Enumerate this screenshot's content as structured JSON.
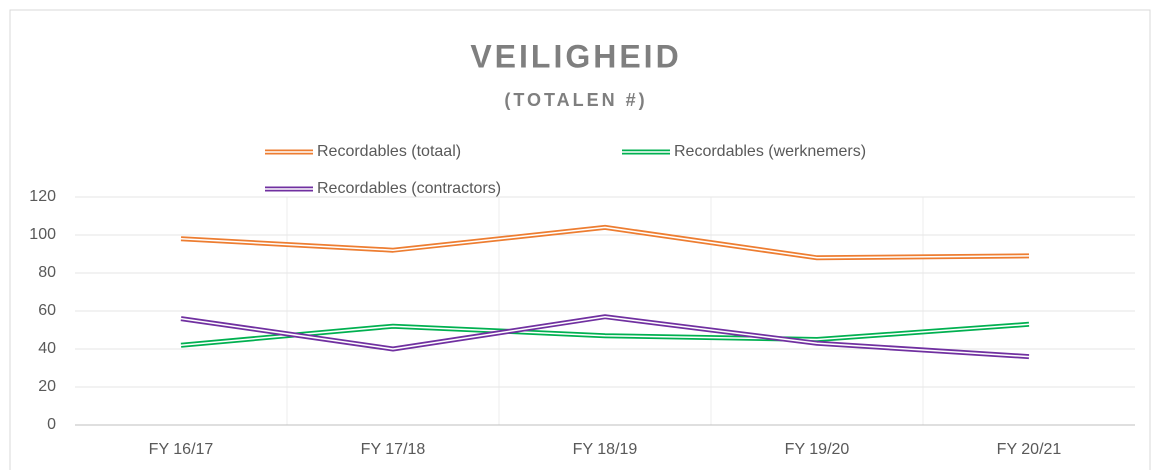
{
  "chart_data": {
    "type": "line",
    "title": "VEILIGHEID",
    "subtitle": "(TOTALEN #)",
    "categories": [
      "FY 16/17",
      "FY 17/18",
      "FY 18/19",
      "FY 19/20",
      "FY 20/21"
    ],
    "series": [
      {
        "name": "Recordables (totaal)",
        "color": "#ed7d31",
        "values": [
          98,
          92,
          104,
          88,
          89
        ]
      },
      {
        "name": "Recordables (werknemers)",
        "color": "#00b050",
        "values": [
          42,
          52,
          47,
          45,
          53
        ]
      },
      {
        "name": "Recordables (contractors)",
        "color": "#7030a0",
        "values": [
          56,
          40,
          57,
          43,
          36
        ]
      }
    ],
    "ylim": [
      0,
      120
    ],
    "yticks": [
      0,
      20,
      40,
      60,
      80,
      100,
      120
    ],
    "grid": true,
    "legend": "top"
  }
}
